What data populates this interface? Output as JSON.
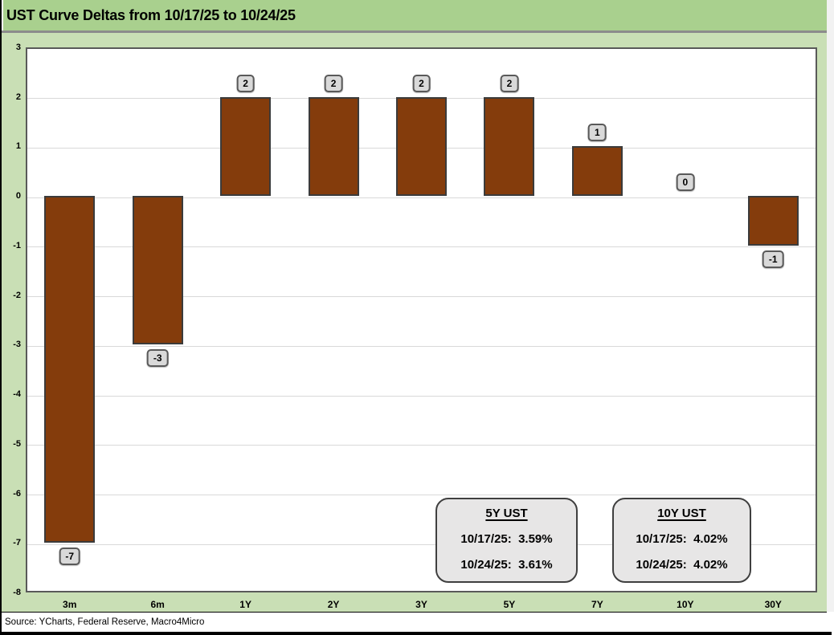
{
  "title": "UST Curve Deltas from 10/17/25 to 10/24/25",
  "source": "Source: YCharts, Federal Reserve, Macro4Micro",
  "chart_data": {
    "type": "bar",
    "title": "UST Curve Deltas from 10/17/25 to 10/24/25",
    "categories": [
      "3m",
      "6m",
      "1Y",
      "2Y",
      "3Y",
      "5Y",
      "7Y",
      "10Y",
      "30Y"
    ],
    "values": [
      -7,
      -3,
      2,
      2,
      2,
      2,
      1,
      0,
      -1
    ],
    "xlabel": "",
    "ylabel": "",
    "ylim": [
      -8,
      3
    ],
    "yticks": [
      3,
      2,
      1,
      0,
      -1,
      -2,
      -3,
      -4,
      -5,
      -6,
      -7,
      -8
    ],
    "grid": true,
    "legend": "none",
    "bar_color": "#843c0c",
    "bar_border_color": "#3b3b3b",
    "data_label_bg": "#d9d9d9",
    "data_label_border": "#595959"
  },
  "annotations": [
    {
      "heading": "5Y UST",
      "lines": [
        "10/17/25:  3.59%",
        "10/24/25:  3.61%"
      ]
    },
    {
      "heading": "10Y UST",
      "lines": [
        "10/17/25:  4.02%",
        "10/24/25:  4.02%"
      ]
    }
  ],
  "colors": {
    "title_band": "#a9d08e",
    "chart_background": "#c9dfb5",
    "plot_background": "#ffffff",
    "gridline": "#d9d9d9",
    "plot_border": "#595959",
    "annotation_bg": "#e7e6e6",
    "bottom_bar": "#000000"
  }
}
